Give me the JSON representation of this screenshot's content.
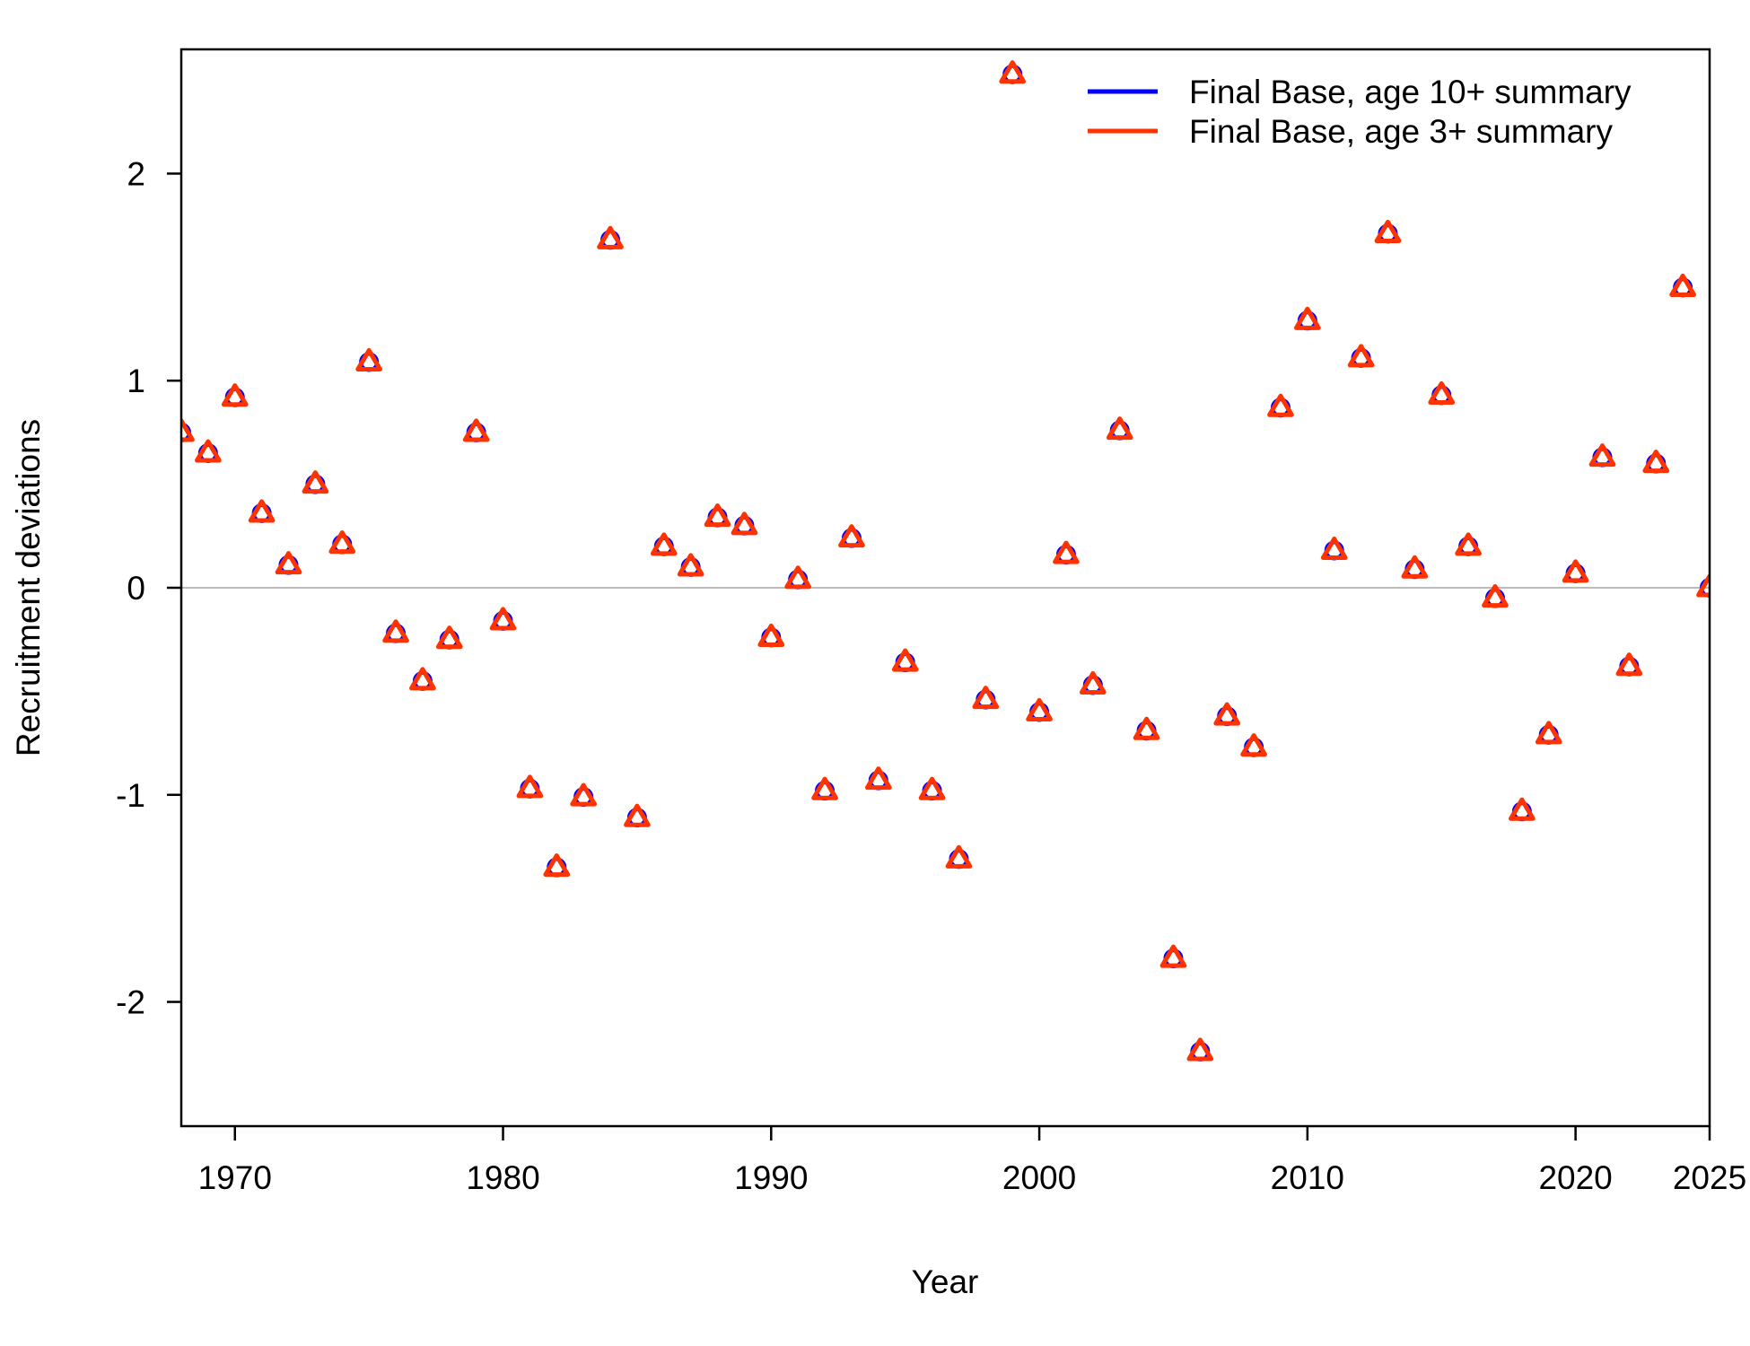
{
  "chart_data": {
    "type": "scatter",
    "title": "",
    "xlabel": "Year",
    "ylabel": "Recruitment deviations",
    "xlim": [
      1968,
      2025
    ],
    "ylim": [
      -2.6,
      2.6
    ],
    "x_ticks": [
      1970,
      1980,
      1990,
      2000,
      2010,
      2020,
      2025
    ],
    "y_ticks": [
      -2,
      -1,
      0,
      1,
      2
    ],
    "x_tick_labels": [
      "1970",
      "1980",
      "1990",
      "2000",
      "2010",
      "2020",
      "2025"
    ],
    "y_tick_labels": [
      "-2",
      "-1",
      "0",
      "1",
      "2"
    ],
    "reference_line": 0,
    "legend_position": "top-right",
    "x": [
      1968,
      1969,
      1970,
      1971,
      1972,
      1973,
      1974,
      1975,
      1976,
      1977,
      1978,
      1979,
      1980,
      1981,
      1982,
      1983,
      1984,
      1985,
      1986,
      1987,
      1988,
      1989,
      1990,
      1991,
      1992,
      1993,
      1994,
      1995,
      1996,
      1997,
      1998,
      1999,
      2000,
      2001,
      2002,
      2003,
      2004,
      2005,
      2006,
      2007,
      2008,
      2009,
      2010,
      2011,
      2012,
      2013,
      2014,
      2015,
      2016,
      2017,
      2018,
      2019,
      2020,
      2021,
      2022,
      2023,
      2024,
      2025
    ],
    "series": [
      {
        "name": "Final Base, age 10+ summary",
        "color": "#0000ff",
        "values": [
          0.75,
          0.65,
          0.92,
          0.36,
          0.11,
          0.5,
          0.21,
          1.09,
          -0.22,
          -0.45,
          -0.25,
          0.75,
          -0.16,
          -0.97,
          -1.35,
          -1.01,
          1.68,
          -1.11,
          0.2,
          0.1,
          0.34,
          0.3,
          -0.24,
          0.04,
          -0.98,
          0.24,
          -0.93,
          -0.36,
          -0.98,
          -1.31,
          -0.54,
          2.48,
          -0.6,
          0.16,
          -0.47,
          0.76,
          -0.69,
          -1.79,
          -2.24,
          -0.62,
          -0.77,
          0.87,
          1.29,
          0.18,
          1.11,
          1.71,
          0.09,
          0.93,
          0.2,
          -0.05,
          -1.08,
          -0.71,
          0.07,
          0.63,
          -0.38,
          0.6,
          1.45,
          0.0
        ]
      },
      {
        "name": "Final Base, age 3+ summary",
        "color": "#ff3300",
        "values": [
          0.75,
          0.65,
          0.92,
          0.36,
          0.11,
          0.5,
          0.21,
          1.09,
          -0.22,
          -0.45,
          -0.25,
          0.75,
          -0.16,
          -0.97,
          -1.35,
          -1.01,
          1.68,
          -1.11,
          0.2,
          0.1,
          0.34,
          0.3,
          -0.24,
          0.04,
          -0.98,
          0.24,
          -0.93,
          -0.36,
          -0.98,
          -1.31,
          -0.54,
          2.48,
          -0.6,
          0.16,
          -0.47,
          0.76,
          -0.69,
          -1.79,
          -2.24,
          -0.62,
          -0.77,
          0.87,
          1.29,
          0.18,
          1.11,
          1.71,
          0.09,
          0.93,
          0.2,
          -0.05,
          -1.08,
          -0.71,
          0.07,
          0.63,
          -0.38,
          0.6,
          1.45,
          0.0
        ]
      }
    ]
  }
}
